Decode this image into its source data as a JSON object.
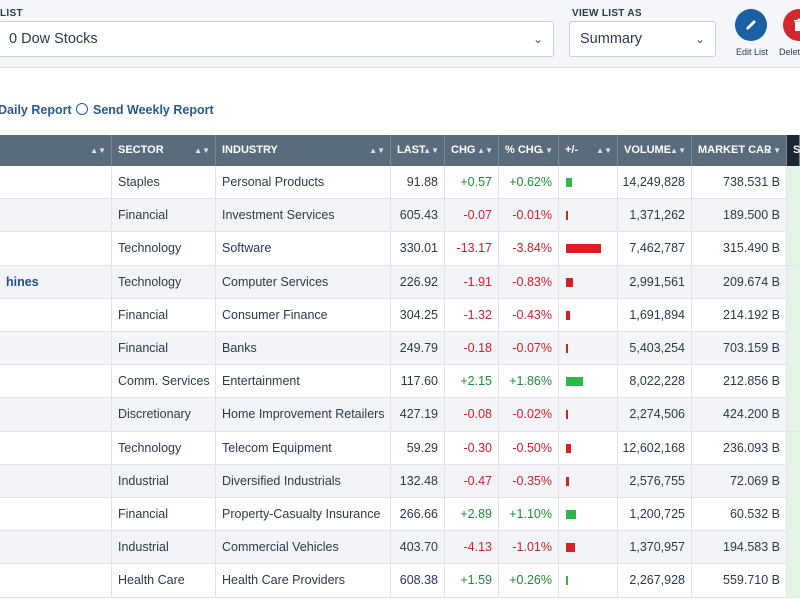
{
  "toolbar": {
    "list_label": "LIST",
    "list_value": "0 Dow Stocks",
    "view_label": "VIEW LIST AS",
    "view_value": "Summary",
    "edit_label": "Edit List",
    "delete_label": "Delet",
    "edit_color": "#1d5fa3",
    "delete_color": "#d5262e"
  },
  "reports": {
    "daily": "Daily Report",
    "weekly": "Send Weekly Report"
  },
  "table": {
    "columns": {
      "sector": "SECTOR",
      "industry": "INDUSTRY",
      "last": "LAST",
      "chg": "CHG",
      "pchg": "% CHG",
      "plusminus": "+/-",
      "volume": "VOLUME",
      "mktcap": "MARKET CAP",
      "last_col": "S"
    },
    "rows": [
      {
        "name": "",
        "sector": "Staples",
        "industry": "Personal Products",
        "last": "91.88",
        "chg": "+0.57",
        "pchg": "+0.62%",
        "pct": 0.62,
        "volume": "14,249,828",
        "mktcap": "738.531 B"
      },
      {
        "name": "",
        "sector": "Financial",
        "industry": "Investment Services",
        "last": "605.43",
        "chg": "-0.07",
        "pchg": "-0.01%",
        "pct": -0.01,
        "volume": "1,371,262",
        "mktcap": "189.500 B"
      },
      {
        "name": "",
        "sector": "Technology",
        "industry": "Software",
        "last": "330.01",
        "chg": "-13.17",
        "pchg": "-3.84%",
        "pct": -3.84,
        "volume": "7,462,787",
        "mktcap": "315.490 B"
      },
      {
        "name": "hines",
        "sector": "Technology",
        "industry": "Computer Services",
        "last": "226.92",
        "chg": "-1.91",
        "pchg": "-0.83%",
        "pct": -0.83,
        "volume": "2,991,561",
        "mktcap": "209.674 B"
      },
      {
        "name": "",
        "sector": "Financial",
        "industry": "Consumer Finance",
        "last": "304.25",
        "chg": "-1.32",
        "pchg": "-0.43%",
        "pct": -0.43,
        "volume": "1,691,894",
        "mktcap": "214.192 B"
      },
      {
        "name": "",
        "sector": "Financial",
        "industry": "Banks",
        "last": "249.79",
        "chg": "-0.18",
        "pchg": "-0.07%",
        "pct": -0.07,
        "volume": "5,403,254",
        "mktcap": "703.159 B"
      },
      {
        "name": "",
        "sector": "Comm. Services",
        "industry": "Entertainment",
        "last": "117.60",
        "chg": "+2.15",
        "pchg": "+1.86%",
        "pct": 1.86,
        "volume": "8,022,228",
        "mktcap": "212.856 B"
      },
      {
        "name": "",
        "sector": "Discretionary",
        "industry": "Home Improvement Retailers",
        "last": "427.19",
        "chg": "-0.08",
        "pchg": "-0.02%",
        "pct": -0.02,
        "volume": "2,274,506",
        "mktcap": "424.200 B"
      },
      {
        "name": "",
        "sector": "Technology",
        "industry": "Telecom Equipment",
        "last": "59.29",
        "chg": "-0.30",
        "pchg": "-0.50%",
        "pct": -0.5,
        "volume": "12,602,168",
        "mktcap": "236.093 B"
      },
      {
        "name": "",
        "sector": "Industrial",
        "industry": "Diversified Industrials",
        "last": "132.48",
        "chg": "-0.47",
        "pchg": "-0.35%",
        "pct": -0.35,
        "volume": "2,576,755",
        "mktcap": "72.069 B"
      },
      {
        "name": "",
        "sector": "Financial",
        "industry": "Property-Casualty Insurance",
        "last": "266.66",
        "chg": "+2.89",
        "pchg": "+1.10%",
        "pct": 1.1,
        "volume": "1,200,725",
        "mktcap": "60.532 B"
      },
      {
        "name": "",
        "sector": "Industrial",
        "industry": "Commercial Vehicles",
        "last": "403.70",
        "chg": "-4.13",
        "pchg": "-1.01%",
        "pct": -1.01,
        "volume": "1,370,957",
        "mktcap": "194.583 B"
      },
      {
        "name": "",
        "sector": "Health Care",
        "industry": "Health Care Providers",
        "last": "608.38",
        "chg": "+1.59",
        "pchg": "+0.26%",
        "pct": 0.26,
        "volume": "2,267,928",
        "mktcap": "559.710 B"
      }
    ]
  }
}
